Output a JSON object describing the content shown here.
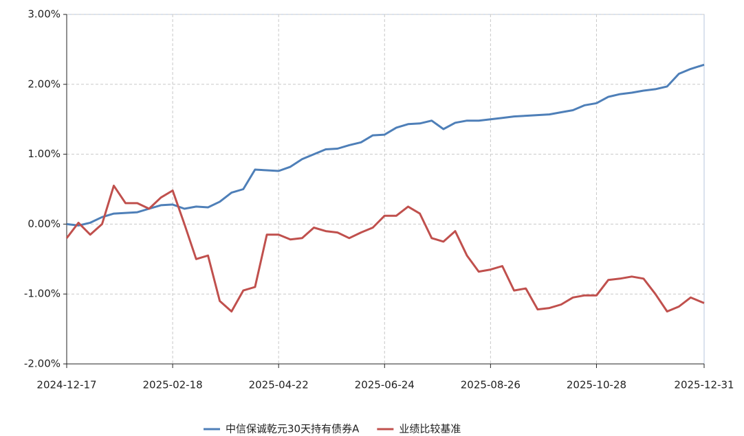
{
  "chart_data": {
    "type": "line",
    "x": [
      "2024-12-17",
      "2024-12-24",
      "2024-12-31",
      "2025-01-07",
      "2025-01-14",
      "2025-01-21",
      "2025-01-28",
      "2025-02-04",
      "2025-02-11",
      "2025-02-18",
      "2025-02-25",
      "2025-03-04",
      "2025-03-11",
      "2025-03-18",
      "2025-03-25",
      "2025-04-01",
      "2025-04-08",
      "2025-04-15",
      "2025-04-22",
      "2025-04-29",
      "2025-05-06",
      "2025-05-13",
      "2025-05-20",
      "2025-05-27",
      "2025-06-03",
      "2025-06-10",
      "2025-06-17",
      "2025-06-24",
      "2025-07-01",
      "2025-07-08",
      "2025-07-15",
      "2025-07-22",
      "2025-07-29",
      "2025-08-05",
      "2025-08-12",
      "2025-08-19",
      "2025-08-26",
      "2025-09-02",
      "2025-09-09",
      "2025-09-16",
      "2025-09-23",
      "2025-09-30",
      "2025-10-07",
      "2025-10-14",
      "2025-10-21",
      "2025-10-28",
      "2025-11-04",
      "2025-11-11",
      "2025-11-18",
      "2025-11-25",
      "2025-12-02",
      "2025-12-09",
      "2025-12-16",
      "2025-12-23",
      "2025-12-31"
    ],
    "series": [
      {
        "name": "中信保诚乾元30天持有债券A",
        "color": "#4e7fb8",
        "values": [
          0,
          -0.02,
          0.02,
          0.1,
          0.15,
          0.16,
          0.17,
          0.22,
          0.27,
          0.28,
          0.22,
          0.25,
          0.24,
          0.32,
          0.45,
          0.5,
          0.78,
          0.77,
          0.76,
          0.82,
          0.93,
          1.0,
          1.07,
          1.08,
          1.13,
          1.17,
          1.27,
          1.28,
          1.38,
          1.43,
          1.44,
          1.48,
          1.36,
          1.45,
          1.48,
          1.48,
          1.5,
          1.52,
          1.54,
          1.55,
          1.56,
          1.57,
          1.6,
          1.63,
          1.7,
          1.73,
          1.82,
          1.86,
          1.88,
          1.91,
          1.93,
          1.97,
          2.15,
          2.22,
          2.28
        ]
      },
      {
        "name": "业绩比较基准",
        "color": "#c0504d",
        "values": [
          -0.2,
          0.02,
          -0.15,
          0.0,
          0.55,
          0.3,
          0.3,
          0.22,
          0.38,
          0.48,
          0.0,
          -0.5,
          -0.45,
          -1.1,
          -1.25,
          -0.95,
          -0.9,
          -0.15,
          -0.15,
          -0.22,
          -0.2,
          -0.05,
          -0.1,
          -0.12,
          -0.2,
          -0.12,
          -0.05,
          0.12,
          0.12,
          0.25,
          0.15,
          -0.2,
          -0.25,
          -0.1,
          -0.45,
          -0.68,
          -0.65,
          -0.6,
          -0.95,
          -0.92,
          -1.22,
          -1.2,
          -1.15,
          -1.05,
          -1.02,
          -1.02,
          -0.8,
          -0.78,
          -0.75,
          -0.78,
          -1.0,
          -1.25,
          -1.18,
          -1.05,
          -1.13
        ]
      }
    ],
    "xlim": [
      "2024-12-17",
      "2025-12-31"
    ],
    "xticks": [
      "2024-12-17",
      "2025-02-18",
      "2025-04-22",
      "2025-06-24",
      "2025-08-26",
      "2025-10-28",
      "2025-12-31"
    ],
    "ylim": [
      -2,
      3
    ],
    "yticks": [
      {
        "value": -2,
        "label": "-2.00%"
      },
      {
        "value": -1,
        "label": "-1.00%"
      },
      {
        "value": 0,
        "label": "0.00%"
      },
      {
        "value": 1,
        "label": "1.00%"
      },
      {
        "value": 2,
        "label": "2.00%"
      },
      {
        "value": 3,
        "label": "3.00%"
      }
    ],
    "grid": true,
    "legend": "bottom"
  }
}
